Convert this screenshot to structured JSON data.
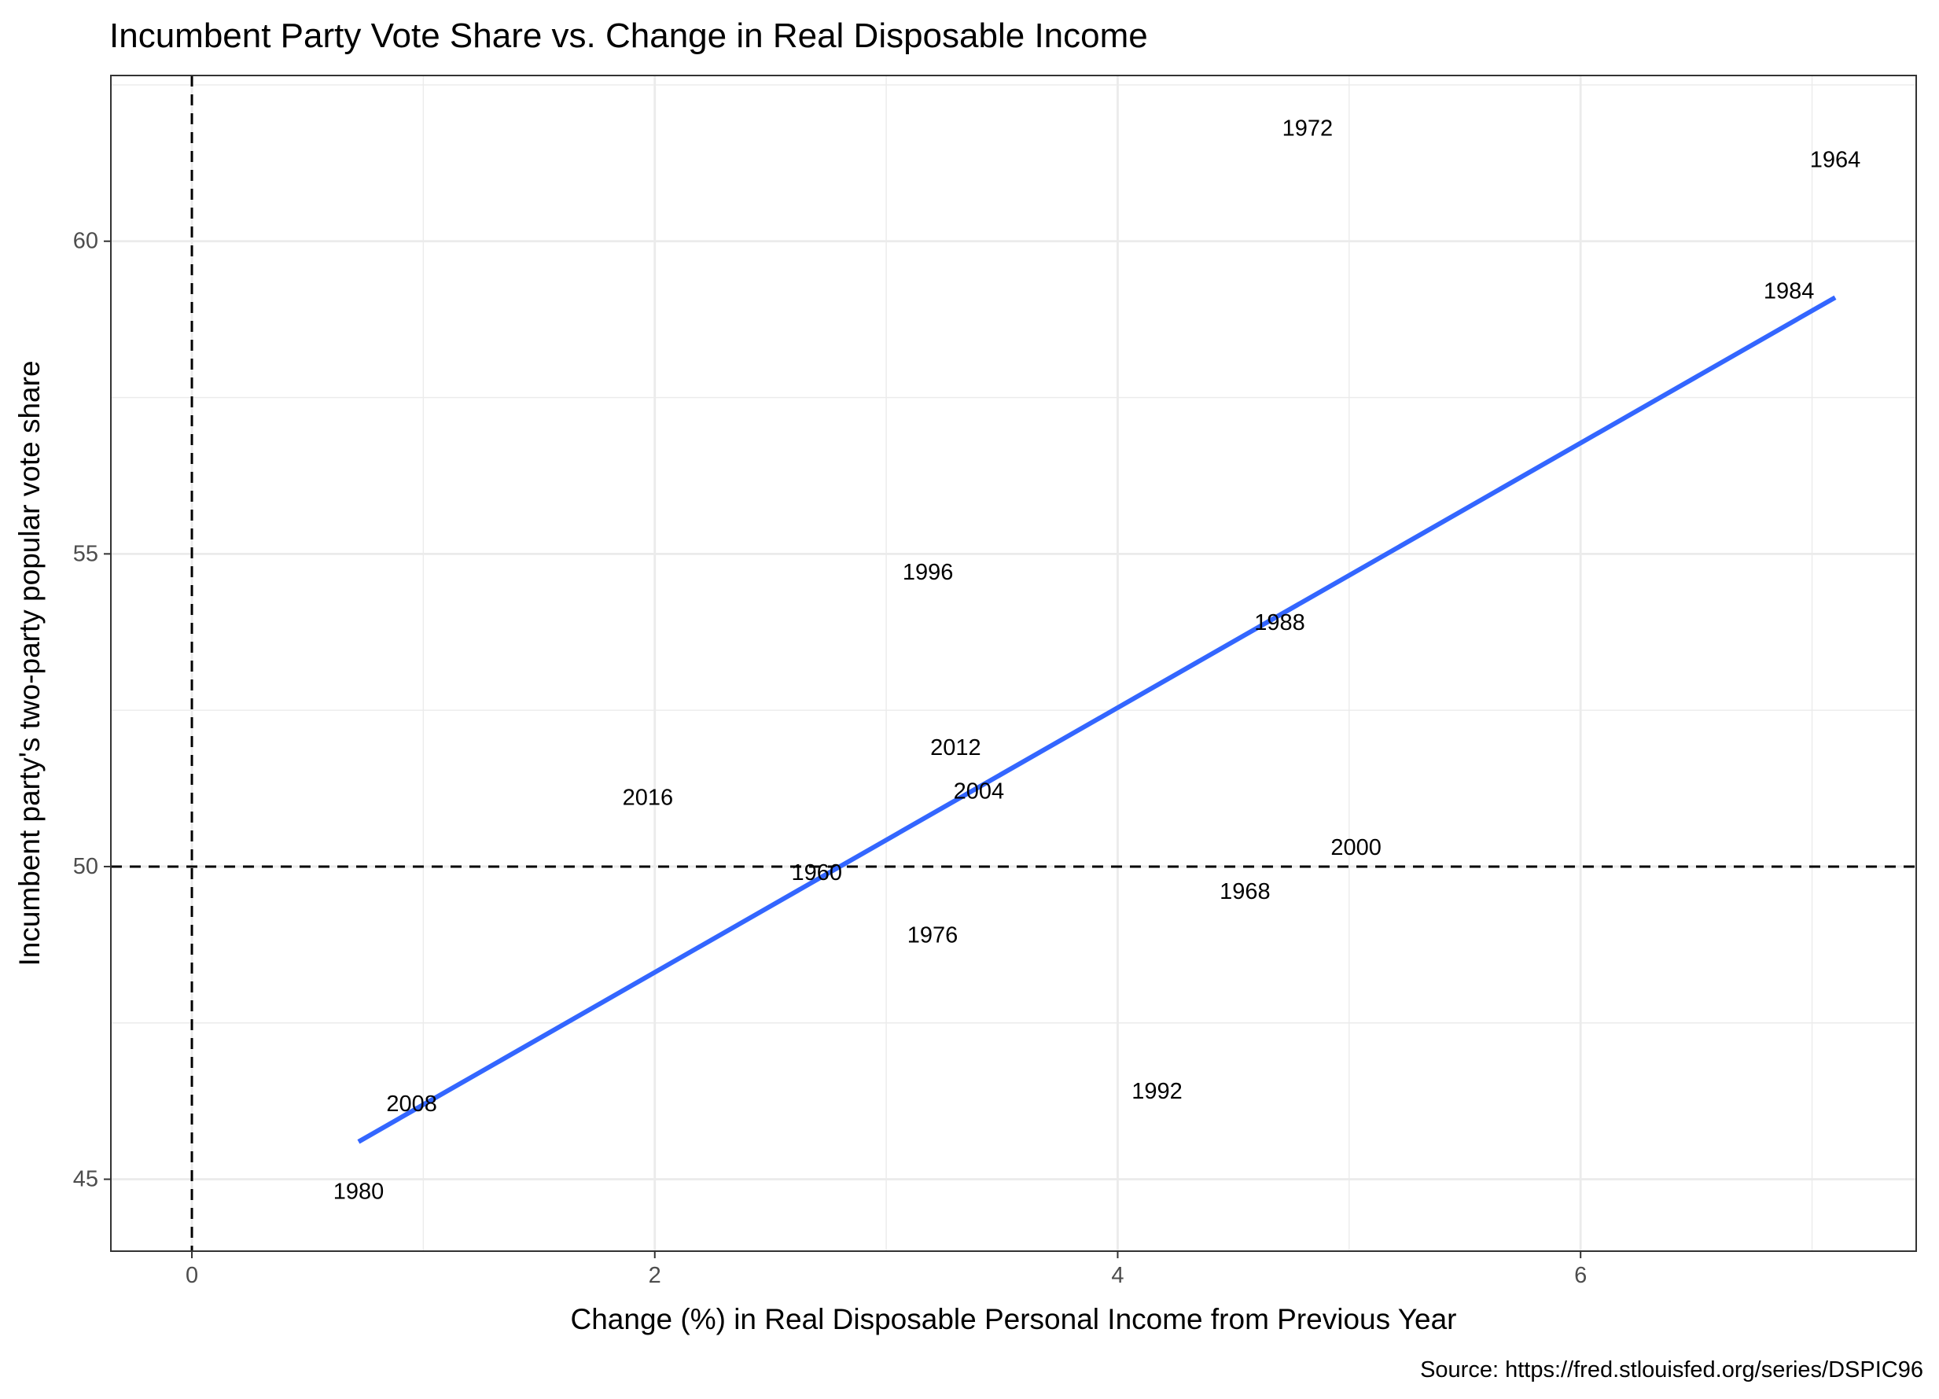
{
  "title": "Incumbent Party Vote Share vs. Change in Real Disposable Income",
  "caption": "Source: https://fred.stlouisfed.org/series/DSPIC96",
  "chart_data": {
    "type": "scatter",
    "title": "Incumbent Party Vote Share vs. Change in Real Disposable Income",
    "xlabel": "Change (%) in Real Disposable Personal Income from Previous Year",
    "ylabel": "Incumbent party's two-party popular vote share",
    "xlim": [
      -0.35,
      7.45
    ],
    "ylim": [
      43.85,
      62.65
    ],
    "x_ticks": [
      0,
      2,
      4,
      6
    ],
    "y_ticks": [
      45,
      50,
      55,
      60
    ],
    "grid": true,
    "reference_lines": {
      "vertical_x": 0,
      "horizontal_y": 50
    },
    "points": [
      {
        "label": "1960",
        "x": 2.7,
        "y": 49.9
      },
      {
        "label": "1964",
        "x": 7.1,
        "y": 61.3
      },
      {
        "label": "1968",
        "x": 4.55,
        "y": 49.6
      },
      {
        "label": "1972",
        "x": 4.82,
        "y": 61.8
      },
      {
        "label": "1976",
        "x": 3.2,
        "y": 48.9
      },
      {
        "label": "1980",
        "x": 0.72,
        "y": 44.8
      },
      {
        "label": "1984",
        "x": 6.9,
        "y": 59.2
      },
      {
        "label": "1988",
        "x": 4.7,
        "y": 53.9
      },
      {
        "label": "1992",
        "x": 4.17,
        "y": 46.4
      },
      {
        "label": "1996",
        "x": 3.18,
        "y": 54.7
      },
      {
        "label": "2000",
        "x": 5.03,
        "y": 50.3
      },
      {
        "label": "2004",
        "x": 3.4,
        "y": 51.2
      },
      {
        "label": "2008",
        "x": 0.95,
        "y": 46.2
      },
      {
        "label": "2012",
        "x": 3.3,
        "y": 51.9
      },
      {
        "label": "2016",
        "x": 1.97,
        "y": 51.1
      }
    ],
    "fit_line": {
      "x": [
        0.72,
        7.1
      ],
      "y": [
        45.6,
        59.1
      ]
    }
  }
}
